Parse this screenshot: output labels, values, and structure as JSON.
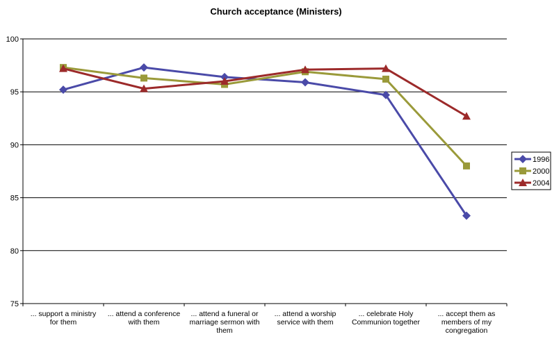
{
  "chart_data": {
    "type": "line",
    "title": "Church acceptance (Ministers)",
    "xlabel": "",
    "ylabel": "",
    "ylim": [
      75,
      100
    ],
    "yticks": [
      "75",
      "80",
      "85",
      "90",
      "95",
      "100"
    ],
    "grid": true,
    "legend_position": "right",
    "categories": [
      [
        "... support a ministry",
        "for them"
      ],
      [
        "... attend a conference",
        "with them"
      ],
      [
        "... attend a funeral or",
        "marriage sermon with",
        "them"
      ],
      [
        "... attend a worship",
        "service with them"
      ],
      [
        "... celebrate Holy",
        "Communion together"
      ],
      [
        "... accept them as",
        "members of my",
        "congregation"
      ]
    ],
    "series": [
      {
        "name": "1996",
        "color": "#4a4aa8",
        "marker": "diamond",
        "values": [
          95.2,
          97.3,
          96.4,
          95.9,
          94.7,
          83.3
        ]
      },
      {
        "name": "2000",
        "color": "#9a9a3a",
        "marker": "square",
        "values": [
          97.3,
          96.3,
          95.7,
          96.9,
          96.2,
          88.0
        ]
      },
      {
        "name": "2004",
        "color": "#9c2a2a",
        "marker": "triangle",
        "values": [
          97.2,
          95.3,
          96.0,
          97.1,
          97.2,
          92.7
        ]
      }
    ]
  }
}
